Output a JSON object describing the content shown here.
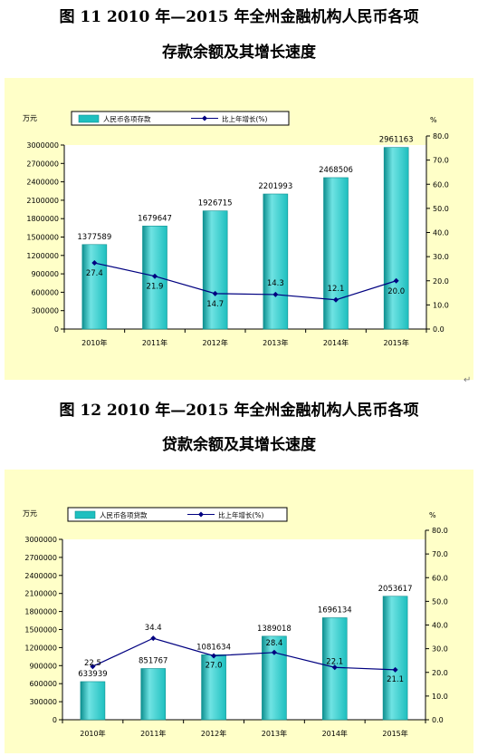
{
  "figures": [
    {
      "title_line1": "图 11    2010 年—2015 年全州金融机构人民币各项",
      "title_line2": "存款余额及其增长速度"
    },
    {
      "title_line1": "图 12    2010 年—2015 年全州金融机构人民币各项",
      "title_line2": "贷款余额及其增长速度"
    }
  ],
  "para_mark": "↵",
  "colors": {
    "bar": "#1ebfbf",
    "bar_dark": "#0d8f8f",
    "bar_light": "#6fe3e3",
    "line": "#000080",
    "panel": "#ffffc8"
  },
  "chart_data": [
    {
      "type": "bar",
      "categories": [
        "2010年",
        "2011年",
        "2012年",
        "2013年",
        "2014年",
        "2015年"
      ],
      "series": [
        {
          "name": "人民币各项存款",
          "type": "bar",
          "axis": "left",
          "values": [
            1377589,
            1679647,
            1926715,
            2201993,
            2468506,
            2961163
          ],
          "labels": [
            "1377589",
            "1679647",
            "1926715",
            "2201993",
            "2468506",
            "2961163"
          ]
        },
        {
          "name": "比上年增长(%)",
          "type": "line",
          "axis": "right",
          "values": [
            27.4,
            21.9,
            14.7,
            14.3,
            12.1,
            20.0
          ],
          "labels": [
            "27.4",
            "21.9",
            "14.7",
            "14.3",
            "12.1",
            "20.0"
          ]
        }
      ],
      "ylabel": "万元",
      "y2label": "%",
      "ylim": [
        0,
        3000000
      ],
      "y2lim": [
        0,
        80
      ],
      "yticks": [
        "0",
        "300000",
        "600000",
        "900000",
        "1200000",
        "1500000",
        "1800000",
        "2100000",
        "2400000",
        "2700000",
        "3000000"
      ],
      "y2ticks": [
        "0.0",
        "10.0",
        "20.0",
        "30.0",
        "40.0",
        "50.0",
        "60.0",
        "70.0",
        "80.0"
      ],
      "legend": "top",
      "grid": false
    },
    {
      "type": "bar",
      "categories": [
        "2010年",
        "2011年",
        "2012年",
        "2013年",
        "2014年",
        "2015年"
      ],
      "series": [
        {
          "name": "人民币各项贷款",
          "type": "bar",
          "axis": "left",
          "values": [
            633939,
            851767,
            1081634,
            1389018,
            1696134,
            2053617
          ],
          "labels": [
            "633939",
            "851767",
            "1081634",
            "1389018",
            "1696134",
            "2053617"
          ]
        },
        {
          "name": "比上年增长(%)",
          "type": "line",
          "axis": "right",
          "values": [
            22.5,
            34.4,
            27.0,
            28.4,
            22.1,
            21.1
          ],
          "labels": [
            "22.5",
            "34.4",
            "27.0",
            "28.4",
            "22.1",
            "21.1"
          ]
        }
      ],
      "ylabel": "万元",
      "y2label": "%",
      "ylim": [
        0,
        3000000
      ],
      "y2lim": [
        0,
        80
      ],
      "yticks": [
        "0",
        "300000",
        "600000",
        "900000",
        "1200000",
        "1500000",
        "1800000",
        "2100000",
        "2400000",
        "2700000",
        "3000000"
      ],
      "y2ticks": [
        "0.0",
        "10.0",
        "20.0",
        "30.0",
        "40.0",
        "50.0",
        "60.0",
        "70.0",
        "80.0"
      ],
      "legend": "top",
      "grid": false
    }
  ]
}
